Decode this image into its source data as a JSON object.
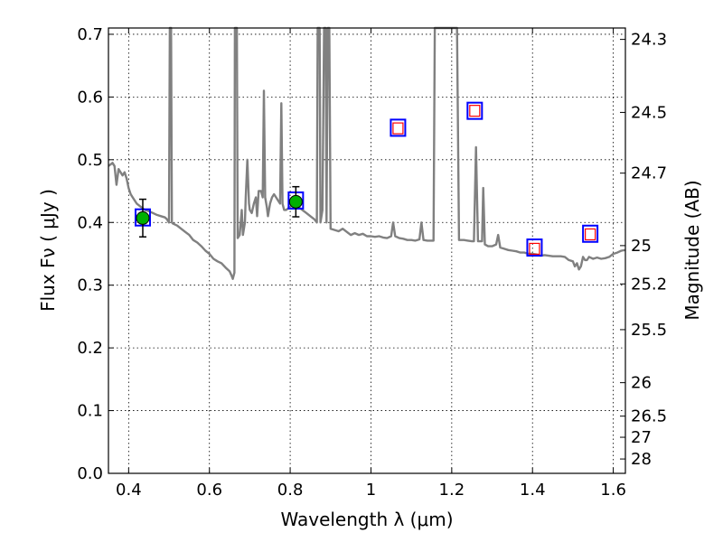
{
  "chart_data": {
    "type": "scatter",
    "xlabel": "Wavelength  λ (μm)",
    "ylabel": "Flux  Fν  ( μJy )",
    "y2label": "Magnitude (AB)",
    "xlim": [
      0.35,
      1.63
    ],
    "ylim": [
      0.0,
      0.71
    ],
    "grid": true,
    "xticks": [
      0.4,
      0.6,
      0.8,
      1.0,
      1.2,
      1.4,
      1.6
    ],
    "xtick_labels": [
      "0.4",
      "0.6",
      "0.8",
      "1",
      "1.2",
      "1.4",
      "1.6"
    ],
    "yticks": [
      0.0,
      0.1,
      0.2,
      0.3,
      0.4,
      0.5,
      0.6,
      0.7
    ],
    "ytick_labels": [
      "0.0",
      "0.1",
      "0.2",
      "0.3",
      "0.4",
      "0.5",
      "0.6",
      "0.7"
    ],
    "y2ticks": [
      {
        "label": "24.3",
        "mag": 24.3
      },
      {
        "label": "24.5",
        "mag": 24.5
      },
      {
        "label": "24.7",
        "mag": 24.7
      },
      {
        "label": "25",
        "mag": 25.0
      },
      {
        "label": "25.2",
        "mag": 25.2
      },
      {
        "label": "25.5",
        "mag": 25.5
      },
      {
        "label": "26",
        "mag": 26.0
      },
      {
        "label": "26.5",
        "mag": 26.5
      },
      {
        "label": "27",
        "mag": 27.0
      },
      {
        "label": "28",
        "mag": 28.0
      }
    ],
    "model_spectrum": {
      "color": "#808080",
      "points": [
        [
          0.35,
          0.49
        ],
        [
          0.36,
          0.495
        ],
        [
          0.365,
          0.49
        ],
        [
          0.37,
          0.46
        ],
        [
          0.375,
          0.485
        ],
        [
          0.38,
          0.48
        ],
        [
          0.385,
          0.475
        ],
        [
          0.39,
          0.48
        ],
        [
          0.395,
          0.47
        ],
        [
          0.4,
          0.455
        ],
        [
          0.405,
          0.445
        ],
        [
          0.41,
          0.44
        ],
        [
          0.42,
          0.43
        ],
        [
          0.43,
          0.425
        ],
        [
          0.44,
          0.42
        ],
        [
          0.45,
          0.418
        ],
        [
          0.46,
          0.415
        ],
        [
          0.47,
          0.412
        ],
        [
          0.48,
          0.41
        ],
        [
          0.49,
          0.408
        ],
        [
          0.495,
          0.405
        ],
        [
          0.5,
          0.4
        ],
        [
          0.502,
          0.71
        ],
        [
          0.505,
          0.71
        ],
        [
          0.507,
          0.4
        ],
        [
          0.51,
          0.398
        ],
        [
          0.52,
          0.395
        ],
        [
          0.53,
          0.39
        ],
        [
          0.54,
          0.385
        ],
        [
          0.55,
          0.38
        ],
        [
          0.56,
          0.372
        ],
        [
          0.57,
          0.368
        ],
        [
          0.58,
          0.362
        ],
        [
          0.59,
          0.355
        ],
        [
          0.6,
          0.35
        ],
        [
          0.61,
          0.342
        ],
        [
          0.62,
          0.338
        ],
        [
          0.63,
          0.335
        ],
        [
          0.64,
          0.328
        ],
        [
          0.65,
          0.322
        ],
        [
          0.655,
          0.315
        ],
        [
          0.658,
          0.31
        ],
        [
          0.662,
          0.32
        ],
        [
          0.663,
          0.71
        ],
        [
          0.668,
          0.71
        ],
        [
          0.67,
          0.375
        ],
        [
          0.675,
          0.38
        ],
        [
          0.68,
          0.42
        ],
        [
          0.683,
          0.38
        ],
        [
          0.688,
          0.4
        ],
        [
          0.69,
          0.44
        ],
        [
          0.694,
          0.5
        ],
        [
          0.698,
          0.43
        ],
        [
          0.7,
          0.42
        ],
        [
          0.705,
          0.415
        ],
        [
          0.71,
          0.43
        ],
        [
          0.715,
          0.44
        ],
        [
          0.718,
          0.41
        ],
        [
          0.722,
          0.45
        ],
        [
          0.728,
          0.45
        ],
        [
          0.732,
          0.44
        ],
        [
          0.735,
          0.61
        ],
        [
          0.738,
          0.44
        ],
        [
          0.742,
          0.425
        ],
        [
          0.745,
          0.41
        ],
        [
          0.75,
          0.43
        ],
        [
          0.755,
          0.44
        ],
        [
          0.76,
          0.445
        ],
        [
          0.765,
          0.44
        ],
        [
          0.77,
          0.435
        ],
        [
          0.775,
          0.43
        ],
        [
          0.778,
          0.59
        ],
        [
          0.781,
          0.43
        ],
        [
          0.785,
          0.42
        ],
        [
          0.79,
          0.42
        ],
        [
          0.8,
          0.425
        ],
        [
          0.81,
          0.43
        ],
        [
          0.82,
          0.425
        ],
        [
          0.83,
          0.42
        ],
        [
          0.84,
          0.415
        ],
        [
          0.85,
          0.41
        ],
        [
          0.86,
          0.405
        ],
        [
          0.866,
          0.4
        ],
        [
          0.868,
          0.71
        ],
        [
          0.873,
          0.71
        ],
        [
          0.875,
          0.4
        ],
        [
          0.88,
          0.42
        ],
        [
          0.884,
          0.71
        ],
        [
          0.888,
          0.71
        ],
        [
          0.89,
          0.4
        ],
        [
          0.893,
          0.71
        ],
        [
          0.897,
          0.71
        ],
        [
          0.9,
          0.39
        ],
        [
          0.91,
          0.388
        ],
        [
          0.92,
          0.386
        ],
        [
          0.93,
          0.39
        ],
        [
          0.94,
          0.385
        ],
        [
          0.95,
          0.38
        ],
        [
          0.96,
          0.383
        ],
        [
          0.97,
          0.38
        ],
        [
          0.98,
          0.382
        ],
        [
          0.99,
          0.378
        ],
        [
          1.0,
          0.378
        ],
        [
          1.01,
          0.377
        ],
        [
          1.02,
          0.378
        ],
        [
          1.03,
          0.376
        ],
        [
          1.04,
          0.375
        ],
        [
          1.05,
          0.378
        ],
        [
          1.055,
          0.4
        ],
        [
          1.06,
          0.378
        ],
        [
          1.07,
          0.375
        ],
        [
          1.08,
          0.374
        ],
        [
          1.09,
          0.372
        ],
        [
          1.1,
          0.372
        ],
        [
          1.11,
          0.371
        ],
        [
          1.12,
          0.373
        ],
        [
          1.125,
          0.4
        ],
        [
          1.13,
          0.372
        ],
        [
          1.14,
          0.371
        ],
        [
          1.15,
          0.371
        ],
        [
          1.155,
          0.371
        ],
        [
          1.158,
          0.71
        ],
        [
          1.213,
          0.71
        ],
        [
          1.218,
          0.372
        ],
        [
          1.23,
          0.372
        ],
        [
          1.24,
          0.371
        ],
        [
          1.25,
          0.37
        ],
        [
          1.255,
          0.37
        ],
        [
          1.26,
          0.52
        ],
        [
          1.265,
          0.37
        ],
        [
          1.27,
          0.37
        ],
        [
          1.275,
          0.37
        ],
        [
          1.278,
          0.455
        ],
        [
          1.282,
          0.365
        ],
        [
          1.29,
          0.362
        ],
        [
          1.3,
          0.362
        ],
        [
          1.31,
          0.365
        ],
        [
          1.315,
          0.38
        ],
        [
          1.32,
          0.36
        ],
        [
          1.33,
          0.358
        ],
        [
          1.34,
          0.356
        ],
        [
          1.35,
          0.355
        ],
        [
          1.36,
          0.354
        ],
        [
          1.37,
          0.352
        ],
        [
          1.38,
          0.352
        ],
        [
          1.39,
          0.35
        ],
        [
          1.4,
          0.35
        ],
        [
          1.41,
          0.349
        ],
        [
          1.42,
          0.347
        ],
        [
          1.43,
          0.348
        ],
        [
          1.44,
          0.347
        ],
        [
          1.45,
          0.346
        ],
        [
          1.46,
          0.346
        ],
        [
          1.47,
          0.346
        ],
        [
          1.48,
          0.345
        ],
        [
          1.49,
          0.34
        ],
        [
          1.5,
          0.338
        ],
        [
          1.505,
          0.33
        ],
        [
          1.51,
          0.335
        ],
        [
          1.515,
          0.325
        ],
        [
          1.52,
          0.33
        ],
        [
          1.525,
          0.345
        ],
        [
          1.53,
          0.34
        ],
        [
          1.535,
          0.34
        ],
        [
          1.54,
          0.345
        ],
        [
          1.55,
          0.342
        ],
        [
          1.56,
          0.344
        ],
        [
          1.57,
          0.342
        ],
        [
          1.58,
          0.343
        ],
        [
          1.59,
          0.345
        ],
        [
          1.6,
          0.35
        ],
        [
          1.61,
          0.352
        ],
        [
          1.62,
          0.355
        ],
        [
          1.63,
          0.356
        ]
      ]
    },
    "measured": {
      "color": "#00b000",
      "points": [
        {
          "x": 0.435,
          "y": 0.407,
          "err": 0.03
        },
        {
          "x": 0.814,
          "y": 0.433,
          "err": 0.024
        }
      ]
    },
    "model_photometry": {
      "edge_color": "#0000ff",
      "points": [
        {
          "x": 0.435,
          "y": 0.408
        },
        {
          "x": 0.814,
          "y": 0.435
        },
        {
          "x": 1.067,
          "y": 0.551
        },
        {
          "x": 1.257,
          "y": 0.578
        },
        {
          "x": 1.405,
          "y": 0.36
        },
        {
          "x": 1.543,
          "y": 0.382
        }
      ]
    },
    "upper_model": {
      "edge_color": "#ff0000",
      "points": [
        {
          "x": 1.067,
          "y": 0.55
        },
        {
          "x": 1.257,
          "y": 0.578
        },
        {
          "x": 1.405,
          "y": 0.358
        },
        {
          "x": 1.543,
          "y": 0.381
        }
      ]
    }
  }
}
